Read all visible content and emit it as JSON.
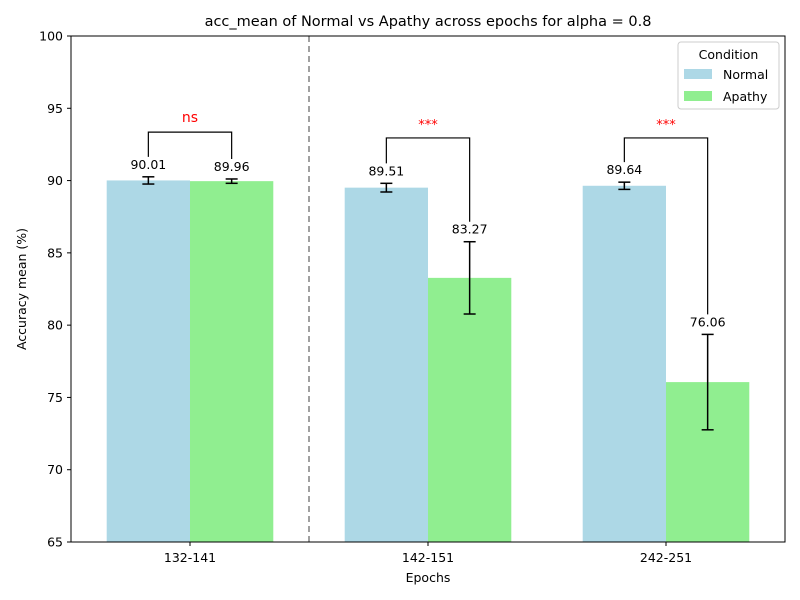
{
  "chart_data": {
    "type": "bar",
    "title": "acc_mean of Normal vs Apathy across epochs for alpha = 0.8",
    "xlabel": "Epochs",
    "ylabel": "Accuracy mean (%)",
    "categories": [
      "132-141",
      "142-151",
      "242-251"
    ],
    "ylim": [
      65,
      100
    ],
    "yticks": [
      65,
      70,
      75,
      80,
      85,
      90,
      95,
      100
    ],
    "legend": {
      "title": "Condition",
      "placement": "top-right"
    },
    "series": [
      {
        "name": "Normal",
        "color": "#add8e6",
        "values": [
          90.01,
          89.51,
          89.64
        ],
        "errors": [
          0.25,
          0.3,
          0.25
        ],
        "value_labels": [
          "90.01",
          "89.51",
          "89.64"
        ]
      },
      {
        "name": "Apathy",
        "color": "#90ee90",
        "values": [
          89.96,
          83.27,
          76.06
        ],
        "errors": [
          0.15,
          2.5,
          3.3
        ],
        "value_labels": [
          "89.96",
          "83.27",
          "76.06"
        ]
      }
    ],
    "significance": [
      {
        "category": "132-141",
        "label": "ns",
        "color": "#ff0000",
        "bracket_y": 93.35
      },
      {
        "category": "142-151",
        "label": "***",
        "color": "#ff0000",
        "bracket_y": 92.95
      },
      {
        "category": "242-251",
        "label": "***",
        "color": "#ff0000",
        "bracket_y": 92.95
      }
    ],
    "separator": {
      "after_category": "132-141",
      "style": "dashed",
      "color": "#808080"
    },
    "grid": false
  }
}
